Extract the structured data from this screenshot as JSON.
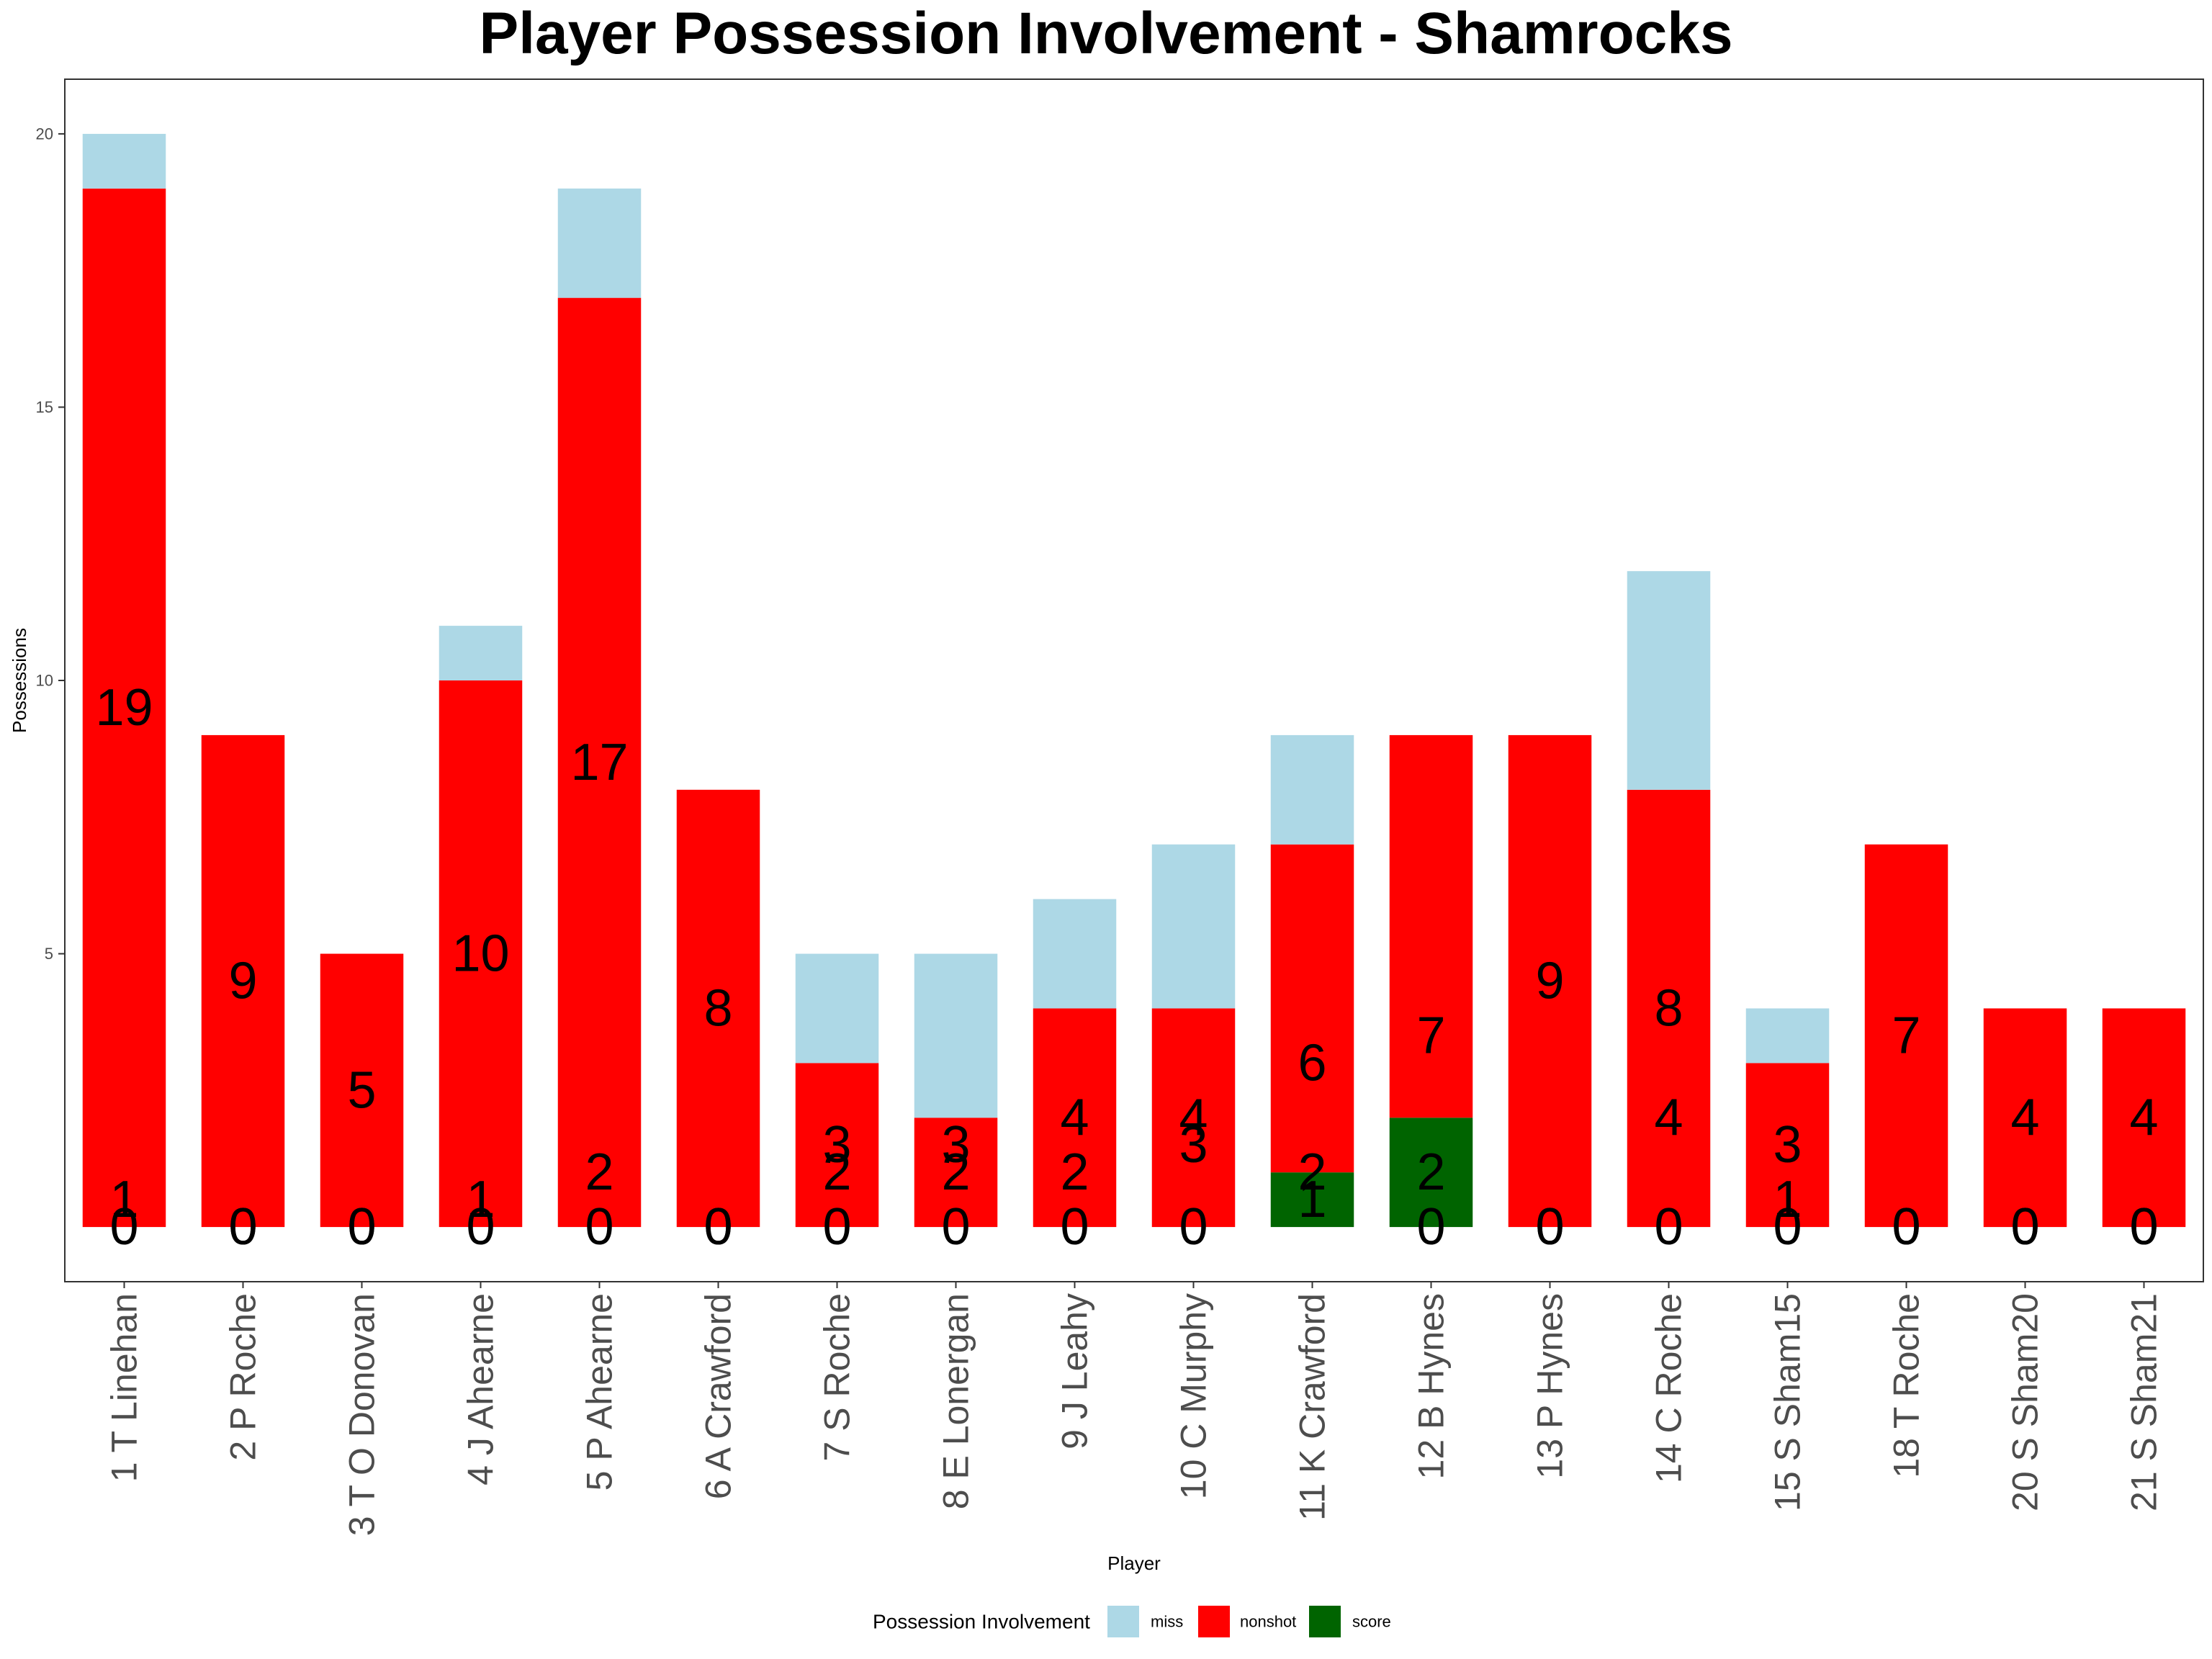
{
  "chart_data": {
    "type": "bar",
    "stacked": true,
    "title": "Player Possession Involvement - Shamrocks",
    "xlabel": "Player",
    "ylabel": "Possessions",
    "ylim": [
      -1,
      21
    ],
    "yticks": [
      5,
      10,
      15,
      20
    ],
    "grid": false,
    "legend_position": "bottom",
    "legend_title": "Possession Involvement",
    "categories": [
      "1 T Linehan",
      "2 P Roche",
      "3 T O Donovan",
      "4 J Ahearne",
      "5 P Ahearne",
      "6 A Crawford",
      "7 S Roche",
      "8 E Lonergan",
      "9 J Leahy",
      "10 C Murphy",
      "11 K Crawford",
      "12 B Hynes",
      "13 P Hynes",
      "14 C Roche",
      "15 S Sham15",
      "18 T Roche",
      "20 S Sham20",
      "21 S Sham21"
    ],
    "series": [
      {
        "name": "score",
        "color": "#006400",
        "values": [
          0,
          0,
          0,
          0,
          0,
          0,
          0,
          0,
          0,
          0,
          1,
          2,
          0,
          0,
          0,
          0,
          0,
          0
        ]
      },
      {
        "name": "nonshot",
        "color": "#ff0000",
        "values": [
          19,
          9,
          5,
          10,
          17,
          8,
          3,
          2,
          4,
          4,
          6,
          7,
          9,
          8,
          3,
          7,
          4,
          4
        ]
      },
      {
        "name": "miss",
        "color": "#add8e6",
        "values": [
          1,
          0,
          0,
          1,
          2,
          0,
          2,
          3,
          2,
          3,
          2,
          0,
          0,
          4,
          1,
          0,
          0,
          0
        ]
      }
    ],
    "legend_order": [
      "miss",
      "nonshot",
      "score"
    ]
  }
}
